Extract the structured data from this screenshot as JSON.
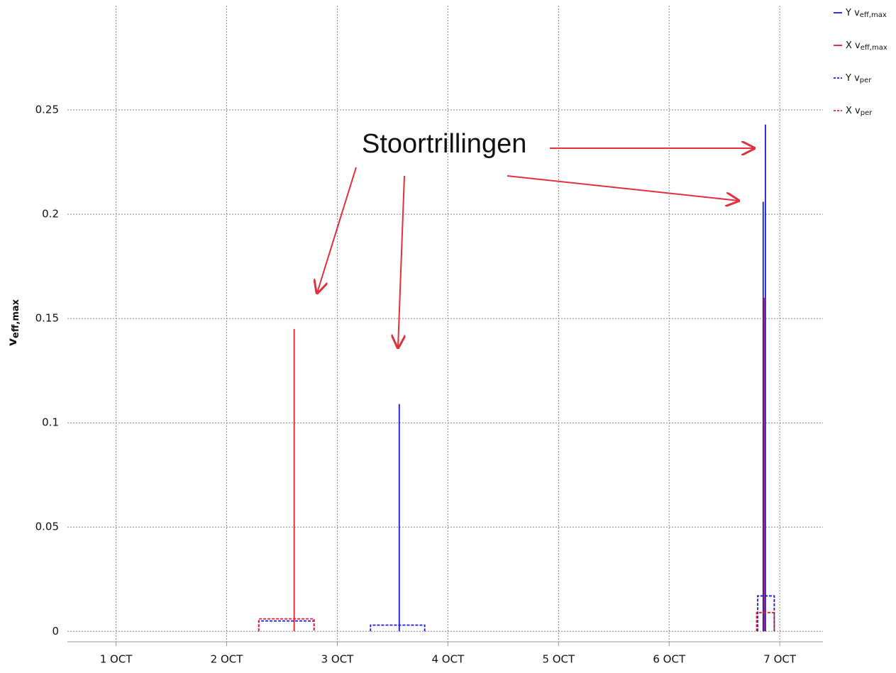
{
  "chart_data": {
    "type": "line",
    "y_label": "v",
    "y_label_sub": "eff,max",
    "annotation": "Stoortrillingen",
    "xlim": [
      0.56,
      7.39
    ],
    "xticks": [
      {
        "value": 1,
        "label": "1 OCT"
      },
      {
        "value": 2,
        "label": "2 OCT"
      },
      {
        "value": 3,
        "label": "3 OCT"
      },
      {
        "value": 4,
        "label": "4 OCT"
      },
      {
        "value": 5,
        "label": "5 OCT"
      },
      {
        "value": 6,
        "label": "6 OCT"
      },
      {
        "value": 7,
        "label": "7 OCT"
      }
    ],
    "ylim": [
      -0.005,
      0.3
    ],
    "yticks": [
      0,
      0.05,
      0.1,
      0.15,
      0.2,
      0.25
    ],
    "grid": true,
    "legend": "top-right",
    "series": [
      {
        "name": "Y v",
        "name_sub": "eff,max",
        "color": "#1a1ad6",
        "dashed": false,
        "x": [
          3.56,
          3.56,
          null,
          6.85,
          6.85,
          null,
          6.87,
          6.87
        ],
        "values": [
          0,
          0.109,
          null,
          0,
          0.206,
          null,
          0,
          0.243
        ]
      },
      {
        "name": "X v",
        "name_sub": "eff,max",
        "color": "#e0202a",
        "dashed": false,
        "x": [
          2.61,
          2.61,
          null,
          6.86,
          6.86
        ],
        "values": [
          0,
          0.145,
          null,
          0,
          0.16
        ]
      },
      {
        "name": "Y v",
        "name_sub": "per",
        "color": "#1a1ad6",
        "dashed": true,
        "x": [
          2.29,
          2.29,
          2.79,
          2.79,
          null,
          3.3,
          3.3,
          3.79,
          3.79,
          null,
          6.8,
          6.8,
          6.95,
          6.95
        ],
        "values": [
          0,
          0.005,
          0.005,
          0,
          null,
          0,
          0.003,
          0.003,
          0,
          null,
          0,
          0.017,
          0.017,
          0
        ]
      },
      {
        "name": "X v",
        "name_sub": "per",
        "color": "#e0202a",
        "dashed": true,
        "x": [
          2.29,
          2.29,
          2.79,
          2.79,
          null,
          6.79,
          6.79,
          6.95,
          6.95
        ],
        "values": [
          0,
          0.006,
          0.006,
          0,
          null,
          0,
          0.009,
          0.009,
          0
        ]
      }
    ]
  }
}
